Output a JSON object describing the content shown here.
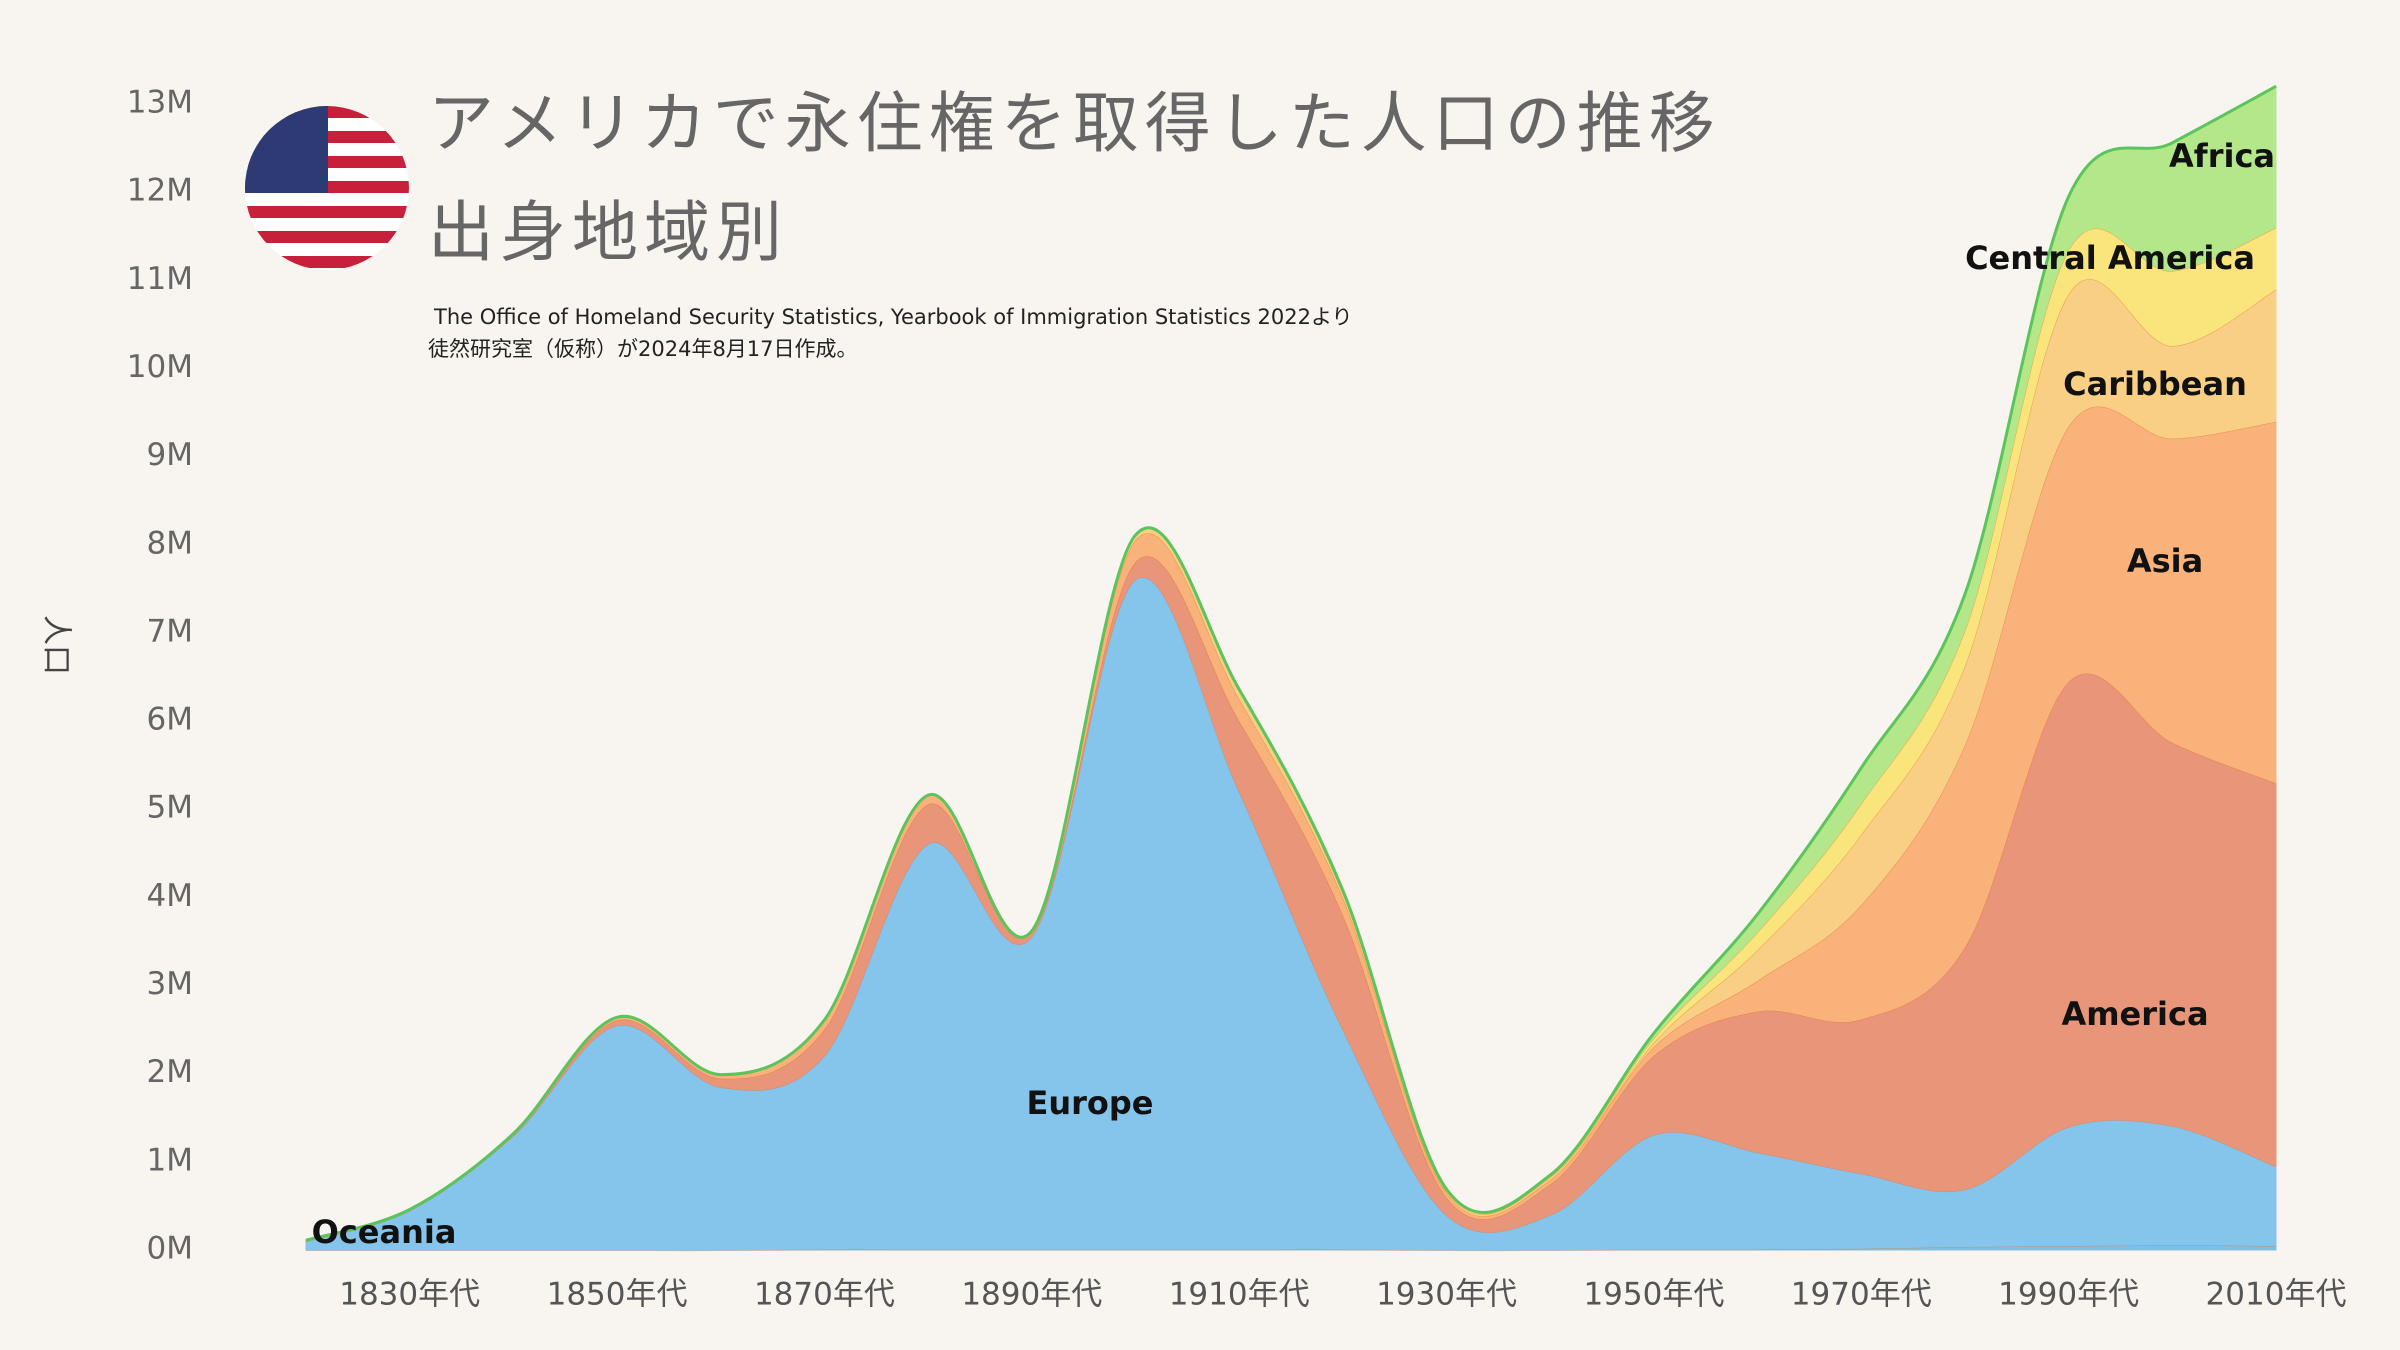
{
  "chart_data": {
    "type": "stacked_area",
    "title": "アメリカで永住権を取得した人口の推移",
    "subtitle": "出身地域別",
    "source": [
      "The Office of Homeland Security Statistics, Yearbook of Immigration Statistics 2022より",
      "徒然研究室（仮称）が2024年8月17日作成。"
    ],
    "ylabel": "人口",
    "categories": [
      null,
      "1830年代",
      null,
      "1850年代",
      null,
      "1870年代",
      null,
      "1890年代",
      null,
      "1910年代",
      null,
      "1930年代",
      null,
      "1950年代",
      null,
      "1970年代",
      null,
      "1990年代",
      null,
      "2010年代"
    ],
    "ylim": [
      0,
      13000000
    ],
    "yticks": [
      {
        "value": 0,
        "label": "0M"
      },
      {
        "value": 1000000,
        "label": "1M"
      },
      {
        "value": 2000000,
        "label": "2M"
      },
      {
        "value": 3000000,
        "label": "3M"
      },
      {
        "value": 4000000,
        "label": "4M"
      },
      {
        "value": 5000000,
        "label": "5M"
      },
      {
        "value": 6000000,
        "label": "6M"
      },
      {
        "value": 7000000,
        "label": "7M"
      },
      {
        "value": 8000000,
        "label": "8M"
      },
      {
        "value": 9000000,
        "label": "9M"
      },
      {
        "value": 10000000,
        "label": "10M"
      },
      {
        "value": 11000000,
        "label": "11M"
      },
      {
        "value": 12000000,
        "label": "12M"
      },
      {
        "value": 13000000,
        "label": "13M"
      }
    ],
    "series": [
      {
        "name": "Oceania",
        "color": "#7fc0e0",
        "values": [
          0,
          0,
          0,
          0,
          0,
          10000,
          10000,
          10000,
          10000,
          10000,
          10000,
          0,
          0,
          10000,
          10000,
          20000,
          40000,
          50000,
          60000,
          50000
        ]
      },
      {
        "name": "Europe",
        "color": "#85c4eb",
        "values": [
          100000,
          450000,
          1300000,
          2550000,
          1850000,
          2200000,
          4600000,
          3550000,
          7600000,
          5200000,
          2500000,
          400000,
          400000,
          1300000,
          1100000,
          850000,
          650000,
          1350000,
          1350000,
          900000
        ]
      },
      {
        "name": "America",
        "color": "#e8957a",
        "values": [
          10000,
          10000,
          20000,
          60000,
          100000,
          300000,
          450000,
          50000,
          200000,
          800000,
          1300000,
          200000,
          350000,
          900000,
          1600000,
          1750000,
          2750000,
          5050000,
          4350000,
          4350000
        ]
      },
      {
        "name": "Asia",
        "color": "#f8b27a",
        "values": [
          0,
          0,
          0,
          30000,
          40000,
          100000,
          100000,
          10000,
          250000,
          250000,
          200000,
          50000,
          50000,
          100000,
          350000,
          1300000,
          2300000,
          2900000,
          3450000,
          4100000
        ]
      },
      {
        "name": "Caribbean",
        "color": "#f8cf85",
        "values": [
          0,
          0,
          0,
          0,
          0,
          0,
          0,
          0,
          50000,
          100000,
          50000,
          20000,
          30000,
          50000,
          350000,
          800000,
          900000,
          1500000,
          1050000,
          1500000
        ]
      },
      {
        "name": "Central America",
        "color": "#f9e57c",
        "values": [
          0,
          0,
          0,
          0,
          0,
          0,
          0,
          0,
          0,
          0,
          20000,
          10000,
          10000,
          50000,
          200000,
          350000,
          400000,
          500000,
          850000,
          700000
        ]
      },
      {
        "name": "Africa",
        "color": "#b4e68a",
        "values": [
          0,
          0,
          0,
          0,
          0,
          0,
          0,
          0,
          0,
          0,
          0,
          10000,
          10000,
          50000,
          200000,
          400000,
          400000,
          600000,
          1450000,
          1600000
        ]
      }
    ]
  }
}
